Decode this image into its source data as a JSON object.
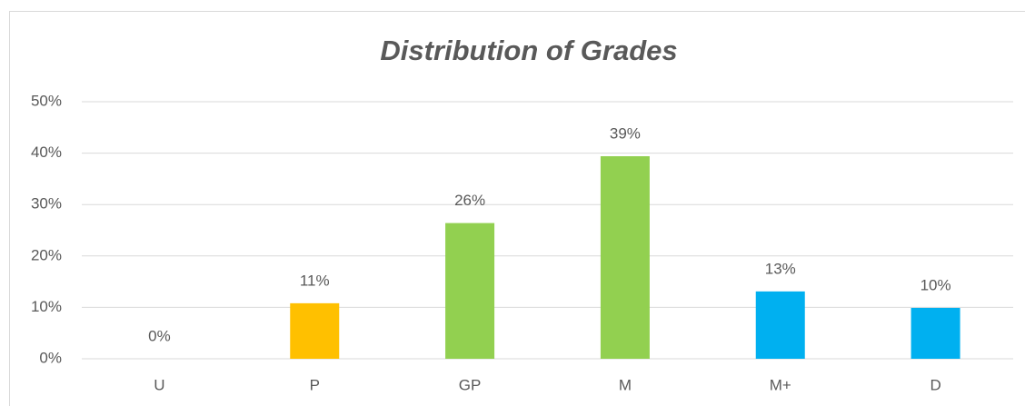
{
  "chart_data": {
    "type": "bar",
    "title": "Distribution of Grades",
    "categories": [
      "U",
      "P",
      "GP",
      "M",
      "M+",
      "D"
    ],
    "values": [
      0,
      10.8,
      26.4,
      39.4,
      13.1,
      9.9
    ],
    "value_labels": [
      "0%",
      "11%",
      "26%",
      "39%",
      "13%",
      "10%"
    ],
    "colors": [
      "#00B0F0",
      "#FFC000",
      "#92D050",
      "#92D050",
      "#00B0F0",
      "#00B0F0"
    ],
    "ylim": [
      0,
      50
    ],
    "yticks": [
      {
        "value": 0,
        "label": "0%"
      },
      {
        "value": 10,
        "label": "10%"
      },
      {
        "value": 20,
        "label": "20%"
      },
      {
        "value": 30,
        "label": "30%"
      },
      {
        "value": 40,
        "label": "40%"
      },
      {
        "value": 50,
        "label": "50%"
      }
    ],
    "grid": true
  }
}
